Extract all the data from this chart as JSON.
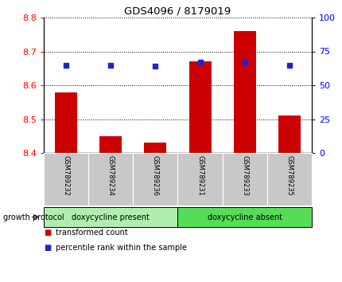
{
  "title": "GDS4096 / 8179019",
  "samples": [
    "GSM789232",
    "GSM789234",
    "GSM789236",
    "GSM789231",
    "GSM789233",
    "GSM789235"
  ],
  "bar_values": [
    8.58,
    8.45,
    8.43,
    8.67,
    8.76,
    8.51
  ],
  "bar_base": 8.4,
  "blue_values": [
    65,
    65,
    64,
    67,
    67,
    65
  ],
  "ylim_left": [
    8.4,
    8.8
  ],
  "ylim_right": [
    0,
    100
  ],
  "yticks_left": [
    8.4,
    8.5,
    8.6,
    8.7,
    8.8
  ],
  "yticks_right": [
    0,
    25,
    50,
    75,
    100
  ],
  "bar_color": "#CC0000",
  "blue_color": "#2222CC",
  "group_color_present": "#B0EEB0",
  "group_color_absent": "#55DD55",
  "sample_bg_color": "#C8C8C8",
  "bar_width": 0.5,
  "background_color": "#ffffff",
  "group_present_label": "doxycycline present",
  "group_absent_label": "doxycycline absent",
  "growth_protocol_label": "growth protocol",
  "legend1": "transformed count",
  "legend2": "percentile rank within the sample"
}
